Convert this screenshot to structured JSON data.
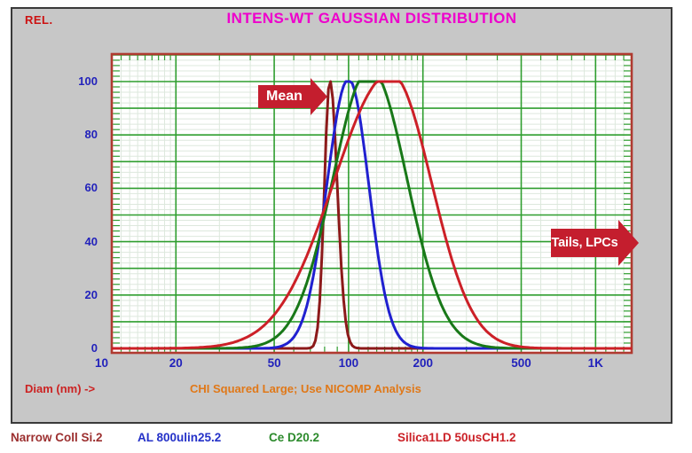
{
  "window": {
    "bg": "#c7c7c7",
    "border": "#3a3a3a",
    "page_bg": "#ffffff"
  },
  "header": {
    "rel_label": "REL.",
    "rel_color": "#cc1111",
    "title": "INTENS-WT GAUSSIAN DISTRIBUTION",
    "title_color": "#ee00cc"
  },
  "footer": {
    "x_axis_label": "Diam (nm) ->",
    "x_axis_label_color": "#cc2222",
    "status_text": "CHI Squared Large; Use NICOMP Analysis",
    "status_color": "#e07818"
  },
  "annotations": {
    "mean_label": "Mean",
    "tails_label": "Tails, LPCs",
    "arrow_color": "#c41e2e",
    "text_color": "#ffffff"
  },
  "legend": {
    "items": [
      {
        "label": "Narrow Coll Si.2",
        "color": "#9c2f2f"
      },
      {
        "label": "AL 800ulin25.2",
        "color": "#2431c8"
      },
      {
        "label": "Ce D20.2",
        "color": "#2c8a2c"
      },
      {
        "label": "Silica1LD 50usCH1.2",
        "color": "#cb2127"
      }
    ]
  },
  "chart_data": {
    "type": "line",
    "title": "INTENS-WT GAUSSIAN DISTRIBUTION",
    "xlabel": "Diam (nm)",
    "ylabel": "REL.",
    "x_axis": {
      "scale": "log",
      "range_nm": [
        11,
        1400
      ],
      "ticks": [
        {
          "label": "10",
          "value": 10
        },
        {
          "label": "20",
          "value": 20
        },
        {
          "label": "50",
          "value": 50
        },
        {
          "label": "100",
          "value": 100
        },
        {
          "label": "200",
          "value": 200
        },
        {
          "label": "500",
          "value": 500
        },
        {
          "label": "1K",
          "value": 1000
        }
      ],
      "major_gridlines_nm": [
        20,
        50,
        100,
        200,
        500,
        1000
      ],
      "tick_color": "#2222bb"
    },
    "y_axis": {
      "range": [
        0,
        110
      ],
      "ticks": [
        100,
        80,
        60,
        40,
        20,
        0
      ],
      "major_step": 10,
      "minor_step": 2,
      "tick_color": "#2222bb"
    },
    "grid": {
      "on": true,
      "major_color": "#2f9e2f",
      "minor_color": "#dde8dd",
      "background": "#ffffff",
      "border_color": "#b03a30"
    },
    "series": [
      {
        "name": "Narrow Coll Si.2",
        "color": "#8c1a1a",
        "peak_nm": 84,
        "peak_rel": 100,
        "amplitude": 100.8,
        "sigma_log_left": 0.022,
        "sigma_log_right": 0.03,
        "points_nm_rel": [
          [
            70,
            1
          ],
          [
            75,
            15
          ],
          [
            80,
            63
          ],
          [
            84,
            100
          ],
          [
            88,
            80
          ],
          [
            92,
            43
          ],
          [
            96,
            16
          ],
          [
            100,
            4
          ]
        ]
      },
      {
        "name": "AL 800ulin25.2",
        "color": "#2020d0",
        "peak_nm": 100,
        "peak_rel": 100,
        "amplitude": 101,
        "sigma_log_left": 0.088,
        "sigma_log_right": 0.082,
        "points_nm_rel": [
          [
            60,
            4
          ],
          [
            70,
            21
          ],
          [
            80,
            55
          ],
          [
            90,
            87
          ],
          [
            100,
            100
          ],
          [
            120,
            63
          ],
          [
            140,
            21
          ],
          [
            160,
            5
          ],
          [
            180,
            1
          ]
        ]
      },
      {
        "name": "Ce D20.2",
        "color": "#187818",
        "peak_nm": 122,
        "peak_rel": 100,
        "amplitude": 105,
        "sigma_log_left": 0.15,
        "sigma_log_right": 0.15,
        "points_nm_rel": [
          [
            60,
            12
          ],
          [
            70,
            29
          ],
          [
            80,
            50
          ],
          [
            100,
            89
          ],
          [
            110,
            100
          ],
          [
            135,
            100
          ],
          [
            150,
            88
          ],
          [
            180,
            56
          ],
          [
            220,
            24
          ],
          [
            260,
            9
          ],
          [
            300,
            4
          ]
        ]
      },
      {
        "name": "Silica1LD 50usCH1.2",
        "color": "#cc2027",
        "peak_nm": 148,
        "peak_rel": 100,
        "amplitude": 103,
        "sigma_log_left": 0.23,
        "sigma_log_right": 0.165,
        "points_nm_rel": [
          [
            40,
            5
          ],
          [
            50,
            13
          ],
          [
            60,
            24
          ],
          [
            80,
            53
          ],
          [
            100,
            78
          ],
          [
            120,
            95
          ],
          [
            135,
            100
          ],
          [
            160,
            100
          ],
          [
            180,
            90
          ],
          [
            220,
            60
          ],
          [
            260,
            34
          ],
          [
            300,
            18
          ],
          [
            400,
            3
          ],
          [
            500,
            1
          ]
        ]
      }
    ],
    "legend_position": "bottom"
  }
}
